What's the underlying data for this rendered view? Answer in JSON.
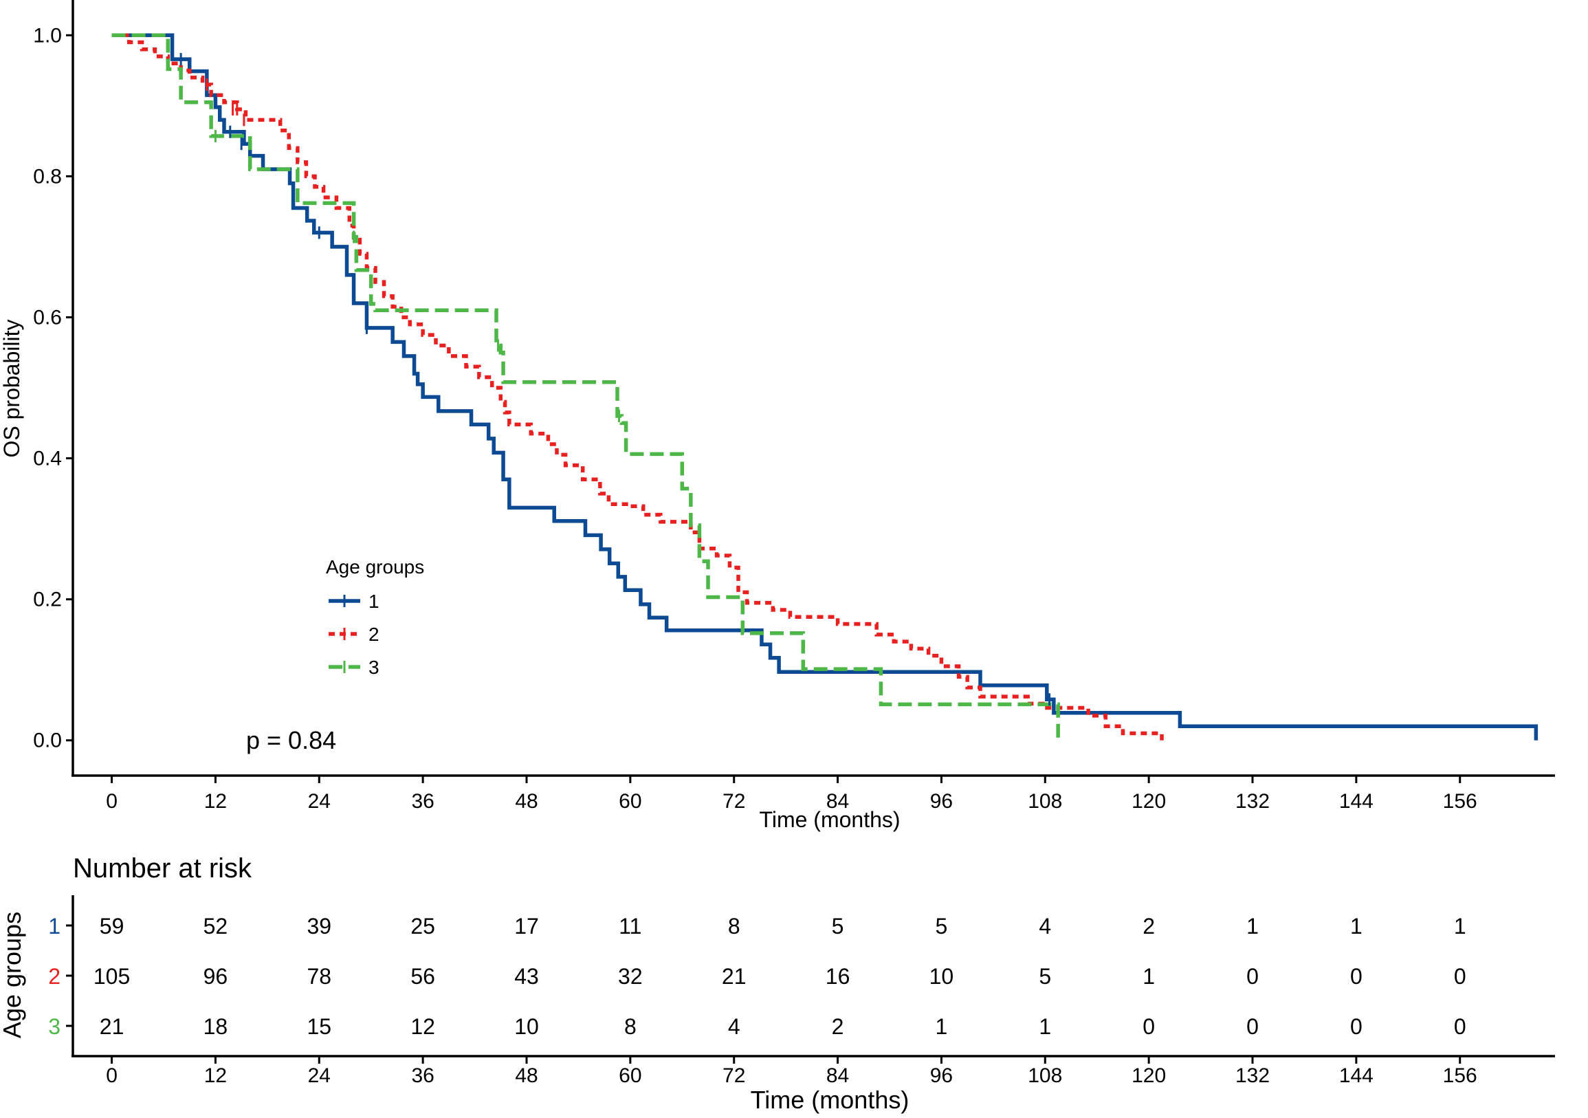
{
  "chart_data": [
    {
      "type": "line",
      "subtype": "kaplan-meier",
      "xlabel": "Time (months)",
      "ylabel": "OS probability",
      "xlim": [
        -4.5,
        167
      ],
      "ylim": [
        -0.05,
        1.05
      ],
      "xticks": [
        "0",
        "12",
        "24",
        "36",
        "48",
        "60",
        "72",
        "84",
        "96",
        "108",
        "120",
        "132",
        "144",
        "156"
      ],
      "yticks": [
        "0.0",
        "0.2",
        "0.4",
        "0.6",
        "0.8",
        "1.0"
      ],
      "legend_title": "Age groups",
      "legend_position": "lower-left",
      "p_value_label": "p = 0.84",
      "series": [
        {
          "name": "1",
          "color": "#0d4a94",
          "dash": "solid",
          "steps": [
            [
              0,
              1.0
            ],
            [
              7,
              0.966
            ],
            [
              9,
              0.949
            ],
            [
              11,
              0.915
            ],
            [
              12,
              0.898
            ],
            [
              12.5,
              0.88
            ],
            [
              13,
              0.863
            ],
            [
              15.3,
              0.846
            ],
            [
              16,
              0.829
            ],
            [
              17.5,
              0.81
            ],
            [
              20.6,
              0.79
            ],
            [
              21,
              0.755
            ],
            [
              22.6,
              0.737
            ],
            [
              23.4,
              0.72
            ],
            [
              25.5,
              0.7
            ],
            [
              27.2,
              0.66
            ],
            [
              28,
              0.62
            ],
            [
              29.5,
              0.585
            ],
            [
              32.5,
              0.565
            ],
            [
              33.8,
              0.545
            ],
            [
              35,
              0.52
            ],
            [
              35.4,
              0.505
            ],
            [
              36,
              0.487
            ],
            [
              37.8,
              0.467
            ],
            [
              41.6,
              0.448
            ],
            [
              43.6,
              0.428
            ],
            [
              44.2,
              0.408
            ],
            [
              45.3,
              0.37
            ],
            [
              46,
              0.33
            ],
            [
              51.2,
              0.311
            ],
            [
              54.8,
              0.291
            ],
            [
              56.6,
              0.271
            ],
            [
              57.6,
              0.251
            ],
            [
              58.6,
              0.232
            ],
            [
              59.4,
              0.213
            ],
            [
              61.2,
              0.193
            ],
            [
              62.2,
              0.174
            ],
            [
              64.2,
              0.156
            ],
            [
              75.2,
              0.136
            ],
            [
              76.2,
              0.117
            ],
            [
              77.2,
              0.097
            ],
            [
              100.5,
              0.078
            ],
            [
              108.2,
              0.058
            ],
            [
              109,
              0.039
            ],
            [
              123.6,
              0.02
            ],
            [
              164.8,
              0.0
            ]
          ],
          "end": 164.8,
          "censors": [
            [
              8,
              0.966
            ],
            [
              13.7,
              0.863
            ],
            [
              15,
              0.846
            ],
            [
              24,
              0.72
            ],
            [
              29.5,
              0.585
            ],
            [
              108.5,
              0.058
            ]
          ]
        },
        {
          "name": "2",
          "color": "#e8201f",
          "dash": "short",
          "steps": [
            [
              0,
              1.0
            ],
            [
              2,
              0.99
            ],
            [
              3.5,
              0.98
            ],
            [
              5,
              0.97
            ],
            [
              6.5,
              0.96
            ],
            [
              8,
              0.95
            ],
            [
              9,
              0.94
            ],
            [
              10.5,
              0.93
            ],
            [
              11.5,
              0.915
            ],
            [
              13,
              0.905
            ],
            [
              14.5,
              0.895
            ],
            [
              15.5,
              0.88
            ],
            [
              19.5,
              0.865
            ],
            [
              20.5,
              0.84
            ],
            [
              21.5,
              0.82
            ],
            [
              22.5,
              0.8
            ],
            [
              23.5,
              0.785
            ],
            [
              24.5,
              0.77
            ],
            [
              26,
              0.755
            ],
            [
              27.5,
              0.73
            ],
            [
              28,
              0.71
            ],
            [
              28.7,
              0.69
            ],
            [
              29.5,
              0.67
            ],
            [
              30.5,
              0.65
            ],
            [
              31.5,
              0.63
            ],
            [
              32.5,
              0.615
            ],
            [
              33.5,
              0.6
            ],
            [
              34.5,
              0.59
            ],
            [
              36,
              0.575
            ],
            [
              37.5,
              0.56
            ],
            [
              39,
              0.545
            ],
            [
              41,
              0.53
            ],
            [
              42.5,
              0.515
            ],
            [
              44,
              0.5
            ],
            [
              45,
              0.48
            ],
            [
              45.5,
              0.465
            ],
            [
              46,
              0.448
            ],
            [
              48.5,
              0.435
            ],
            [
              50.5,
              0.42
            ],
            [
              51.5,
              0.405
            ],
            [
              52.5,
              0.39
            ],
            [
              54.5,
              0.37
            ],
            [
              56.5,
              0.35
            ],
            [
              57.5,
              0.335
            ],
            [
              60,
              0.332
            ],
            [
              61.5,
              0.32
            ],
            [
              63.5,
              0.31
            ],
            [
              67,
              0.295
            ],
            [
              68,
              0.272
            ],
            [
              70,
              0.262
            ],
            [
              71.5,
              0.245
            ],
            [
              72.5,
              0.21
            ],
            [
              73.5,
              0.195
            ],
            [
              76.5,
              0.185
            ],
            [
              78.5,
              0.175
            ],
            [
              84,
              0.165
            ],
            [
              88.5,
              0.15
            ],
            [
              90.5,
              0.14
            ],
            [
              92.5,
              0.13
            ],
            [
              94.5,
              0.12
            ],
            [
              96,
              0.105
            ],
            [
              98,
              0.09
            ],
            [
              99,
              0.075
            ],
            [
              100.5,
              0.062
            ],
            [
              106,
              0.052
            ],
            [
              108,
              0.046
            ],
            [
              113,
              0.035
            ],
            [
              115,
              0.02
            ],
            [
              117,
              0.01
            ],
            [
              121.5,
              0.0
            ]
          ],
          "end": 121.5,
          "censors": [
            [
              11,
              0.93
            ],
            [
              14,
              0.895
            ],
            [
              14.5,
              0.895
            ],
            [
              15.3,
              0.88
            ]
          ]
        },
        {
          "name": "3",
          "color": "#4db848",
          "dash": "long",
          "steps": [
            [
              0,
              1.0
            ],
            [
              6.5,
              0.952
            ],
            [
              8,
              0.905
            ],
            [
              11.5,
              0.857
            ],
            [
              16,
              0.81
            ],
            [
              21.5,
              0.762
            ],
            [
              28,
              0.714
            ],
            [
              28.3,
              0.667
            ],
            [
              30,
              0.619
            ],
            [
              30.5,
              0.61
            ],
            [
              44.5,
              0.56
            ],
            [
              45,
              0.55
            ],
            [
              45.3,
              0.508
            ],
            [
              58.5,
              0.46
            ],
            [
              59,
              0.45
            ],
            [
              59.5,
              0.406
            ],
            [
              66,
              0.357
            ],
            [
              67,
              0.305
            ],
            [
              68,
              0.254
            ],
            [
              69,
              0.203
            ],
            [
              72,
              0.203
            ],
            [
              73,
              0.152
            ],
            [
              80,
              0.101
            ],
            [
              89,
              0.051
            ],
            [
              109.5,
              0.0
            ]
          ],
          "end": 109.5,
          "censors": [
            [
              12,
              0.857
            ],
            [
              28,
              0.714
            ],
            [
              44.7,
              0.56
            ],
            [
              58.7,
              0.46
            ]
          ]
        }
      ]
    },
    {
      "type": "table",
      "title": "Number at risk",
      "ylabel": "Age groups",
      "xlabel": "Time (months)",
      "columns": [
        "0",
        "12",
        "24",
        "36",
        "48",
        "60",
        "72",
        "84",
        "96",
        "108",
        "120",
        "132",
        "144",
        "156"
      ],
      "rows": [
        {
          "label": "1",
          "color": "#0d4a94",
          "values": [
            "59",
            "52",
            "39",
            "25",
            "17",
            "11",
            "8",
            "5",
            "5",
            "4",
            "2",
            "1",
            "1",
            "1"
          ]
        },
        {
          "label": "2",
          "color": "#e8201f",
          "values": [
            "105",
            "96",
            "78",
            "56",
            "43",
            "32",
            "21",
            "16",
            "10",
            "5",
            "1",
            "0",
            "0",
            "0"
          ]
        },
        {
          "label": "3",
          "color": "#4db848",
          "values": [
            "21",
            "18",
            "15",
            "12",
            "10",
            "8",
            "4",
            "2",
            "1",
            "1",
            "0",
            "0",
            "0",
            "0"
          ]
        }
      ]
    }
  ]
}
